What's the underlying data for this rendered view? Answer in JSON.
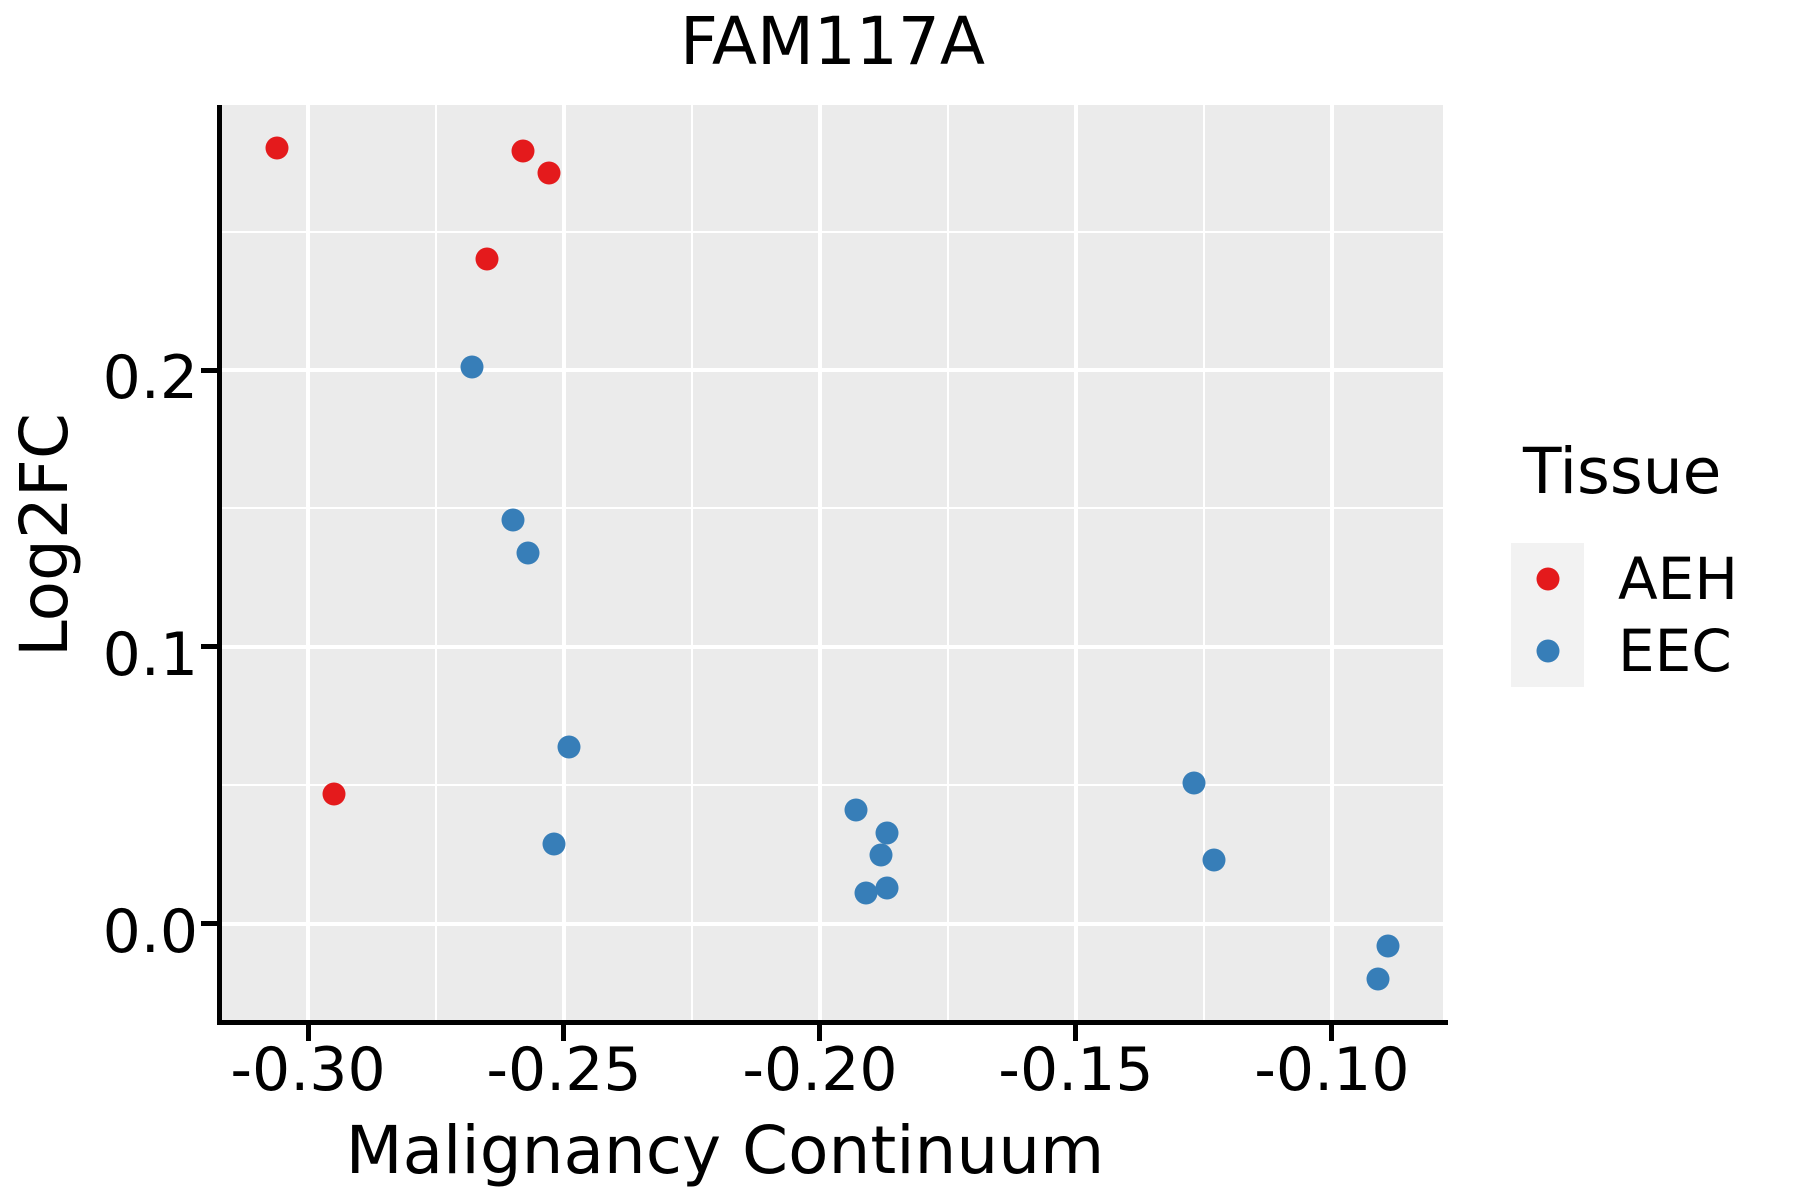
{
  "title": "FAM117A",
  "chart_data": {
    "type": "scatter",
    "title": "FAM117A",
    "xlabel": "Malignancy Continuum",
    "ylabel": "Log2FC",
    "xlim": [
      -0.3168,
      -0.0783
    ],
    "ylim": [
      -0.0347,
      0.2957
    ],
    "x_major_ticks": [
      -0.3,
      -0.25,
      -0.2,
      -0.15,
      -0.1
    ],
    "x_tick_labels": [
      "-0.30",
      "-0.25",
      "-0.20",
      "-0.15",
      "-0.10"
    ],
    "x_minor_ticks": [
      -0.275,
      -0.225,
      -0.175,
      -0.125
    ],
    "y_major_ticks": [
      0.0,
      0.1,
      0.2
    ],
    "y_tick_labels": [
      "0.0",
      "0.1",
      "0.2"
    ],
    "y_minor_ticks": [
      0.05,
      0.15,
      0.25
    ],
    "grid": true,
    "panel_bg": "#ebebeb",
    "grid_color": "#ffffff",
    "legend": {
      "title": "Tissue",
      "position": "right",
      "entries": [
        {
          "label": "AEH",
          "color": "#e41a1c"
        },
        {
          "label": "EEC",
          "color": "#377eb8"
        }
      ]
    },
    "series": [
      {
        "name": "AEH",
        "color": "#e41a1c",
        "points": [
          [
            -0.306,
            0.28
          ],
          [
            -0.265,
            0.24
          ],
          [
            -0.258,
            0.279
          ],
          [
            -0.253,
            0.271
          ],
          [
            -0.295,
            0.047
          ]
        ]
      },
      {
        "name": "EEC",
        "color": "#377eb8",
        "points": [
          [
            -0.268,
            0.201
          ],
          [
            -0.26,
            0.146
          ],
          [
            -0.257,
            0.134
          ],
          [
            -0.252,
            0.029
          ],
          [
            -0.249,
            0.064
          ],
          [
            -0.193,
            0.041
          ],
          [
            -0.191,
            0.011
          ],
          [
            -0.188,
            0.025
          ],
          [
            -0.187,
            0.033
          ],
          [
            -0.187,
            0.013
          ],
          [
            -0.127,
            0.051
          ],
          [
            -0.123,
            0.023
          ],
          [
            -0.091,
            -0.02
          ],
          [
            -0.089,
            -0.008
          ]
        ]
      }
    ]
  }
}
